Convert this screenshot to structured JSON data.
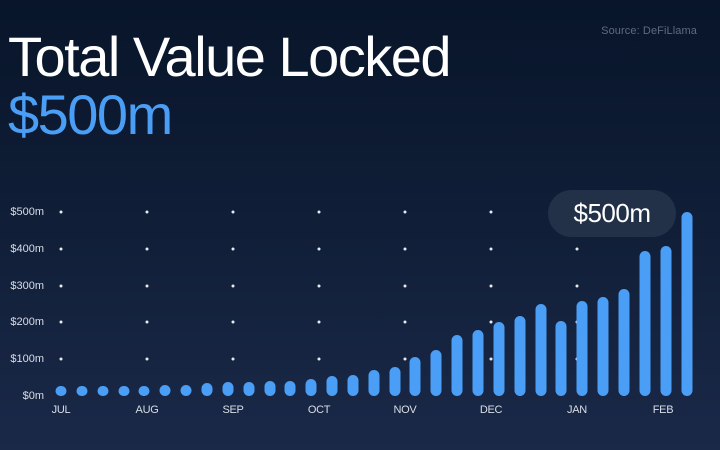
{
  "header": {
    "title": "Total Value Locked",
    "value": "$500m",
    "source": "Source: DeFiLlama"
  },
  "tooltip": {
    "label": "$500m"
  },
  "colors": {
    "accent": "#4a9ef5",
    "background_top": "#08152a",
    "background_bottom": "#1a2948",
    "tooltip_bg": "#223148"
  },
  "chart_data": {
    "type": "bar",
    "title": "Total Value Locked",
    "subtitle": "$500m",
    "annotation": "$500m",
    "source": "Source: DeFiLlama",
    "xlabel": "",
    "ylabel": "",
    "ylim": [
      0,
      500
    ],
    "yticks": [
      "$0m",
      "$100m",
      "$200m",
      "$300m",
      "$400m",
      "$500m"
    ],
    "ytick_values": [
      0,
      100,
      200,
      300,
      400,
      500
    ],
    "xtick_labels": [
      "JUL",
      "AUG",
      "SEP",
      "OCT",
      "NOV",
      "DEC",
      "JAN",
      "FEB"
    ],
    "xtick_bar_index": [
      0,
      4,
      8,
      12,
      16,
      20,
      24,
      29
    ],
    "grid": "dotted",
    "legend": null,
    "units": "$m",
    "values": [
      25,
      25,
      27,
      25,
      26,
      30,
      30,
      35,
      37,
      38,
      40,
      41,
      45,
      55,
      58,
      70,
      80,
      105,
      125,
      165,
      180,
      200,
      218,
      250,
      205,
      258,
      270,
      292,
      395,
      408,
      500
    ]
  }
}
